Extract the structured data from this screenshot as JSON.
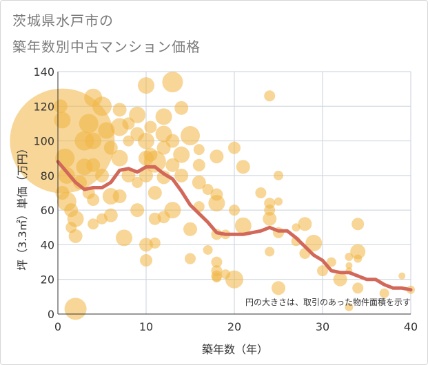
{
  "title_line1": "茨城県水戸市の",
  "title_line2": "築年数別中古マンション価格",
  "chart_data": {
    "type": "scatter",
    "xlabel": "築年数（年）",
    "ylabel": "坪（3.3㎡）単価（万円）",
    "xlim": [
      0,
      40
    ],
    "ylim": [
      0,
      140
    ],
    "x_ticks": [
      "0",
      "10",
      "20",
      "30",
      "40"
    ],
    "y_ticks": [
      "0",
      "20",
      "40",
      "60",
      "80",
      "100",
      "120",
      "140"
    ],
    "grid": true,
    "note": "円の大きさは、取引のあった物件面積を示す",
    "colors": {
      "bubble": "#f0b442",
      "trend": "#d2685a",
      "grid": "#c9d2dc"
    },
    "bubbles": [
      [
        0.5,
        100,
        76
      ],
      [
        0.3,
        120,
        10
      ],
      [
        0.5,
        112,
        12
      ],
      [
        0.8,
        90,
        14
      ],
      [
        1,
        80,
        12
      ],
      [
        1,
        65,
        14
      ],
      [
        0.5,
        70,
        10
      ],
      [
        1.5,
        60,
        10
      ],
      [
        2,
        55,
        12
      ],
      [
        2,
        45,
        10
      ],
      [
        2,
        3,
        16
      ],
      [
        1.5,
        50,
        8
      ],
      [
        2.5,
        76,
        10
      ],
      [
        3,
        100,
        14
      ],
      [
        3,
        85,
        12
      ],
      [
        3.5,
        70,
        9
      ],
      [
        3.5,
        110,
        14
      ],
      [
        4,
        125,
        13
      ],
      [
        4,
        100,
        12
      ],
      [
        4,
        86,
        10
      ],
      [
        4,
        66,
        9
      ],
      [
        4,
        52,
        8
      ],
      [
        5,
        120,
        14
      ],
      [
        5,
        80,
        10
      ],
      [
        5,
        55,
        8
      ],
      [
        5.5,
        106,
        12
      ],
      [
        6,
        96,
        10
      ],
      [
        6,
        68,
        12
      ],
      [
        6,
        57,
        10
      ],
      [
        7,
        118,
        10
      ],
      [
        7,
        108,
        13
      ],
      [
        7,
        90,
        12
      ],
      [
        7,
        68,
        10
      ],
      [
        7.5,
        44,
        12
      ],
      [
        8,
        110,
        9
      ],
      [
        8,
        80,
        10
      ],
      [
        8,
        100,
        8
      ],
      [
        9,
        115,
        12
      ],
      [
        9,
        104,
        10
      ],
      [
        9,
        60,
        10
      ],
      [
        9,
        76,
        8
      ],
      [
        10,
        132,
        12
      ],
      [
        10,
        100,
        12
      ],
      [
        10,
        90,
        11
      ],
      [
        10,
        80,
        10
      ],
      [
        10,
        40,
        10
      ],
      [
        10,
        31,
        9
      ],
      [
        10.5,
        108,
        9
      ],
      [
        10.5,
        92,
        10
      ],
      [
        11,
        88,
        16
      ],
      [
        11,
        70,
        10
      ],
      [
        11,
        55,
        9
      ],
      [
        11,
        41,
        8
      ],
      [
        12,
        114,
        12
      ],
      [
        12,
        104,
        12
      ],
      [
        12,
        96,
        10
      ],
      [
        12,
        79,
        10
      ],
      [
        12,
        56,
        9
      ],
      [
        13,
        134,
        15
      ],
      [
        13,
        100,
        10
      ],
      [
        13,
        86,
        10
      ],
      [
        13,
        60,
        12
      ],
      [
        14,
        119,
        10
      ],
      [
        14,
        92,
        12
      ],
      [
        14,
        80,
        10
      ],
      [
        15,
        103,
        14
      ],
      [
        15,
        49,
        10
      ],
      [
        15,
        32,
        8
      ],
      [
        16,
        95,
        8
      ],
      [
        16,
        86,
        9
      ],
      [
        16,
        76,
        10
      ],
      [
        16,
        62,
        8
      ],
      [
        17,
        72,
        8
      ],
      [
        17,
        37,
        7
      ],
      [
        18,
        91,
        10
      ],
      [
        18,
        69,
        9
      ],
      [
        18,
        64,
        12
      ],
      [
        18,
        46,
        8
      ],
      [
        18,
        30,
        8
      ],
      [
        18,
        25,
        8
      ],
      [
        18,
        22,
        8
      ],
      [
        18,
        21,
        7
      ],
      [
        19,
        23,
        7
      ],
      [
        19,
        46,
        7
      ],
      [
        20,
        96,
        9
      ],
      [
        20,
        60,
        8
      ],
      [
        20,
        20,
        13
      ],
      [
        21,
        85,
        10
      ],
      [
        21,
        51,
        12
      ],
      [
        23,
        70,
        8
      ],
      [
        24,
        126,
        8
      ],
      [
        24,
        64,
        8
      ],
      [
        24,
        60,
        8
      ],
      [
        24,
        55,
        10
      ],
      [
        24,
        36,
        7
      ],
      [
        25,
        80,
        7
      ],
      [
        25,
        65,
        6
      ],
      [
        25,
        47,
        8
      ],
      [
        25,
        15,
        10
      ],
      [
        27,
        50,
        6
      ],
      [
        27,
        42,
        7
      ],
      [
        28,
        52,
        10
      ],
      [
        28,
        35,
        8
      ],
      [
        29,
        41,
        12
      ],
      [
        30,
        25,
        8
      ],
      [
        31,
        30,
        7
      ],
      [
        32,
        20,
        10
      ],
      [
        33,
        33,
        6
      ],
      [
        33,
        28,
        5
      ],
      [
        33,
        25,
        5
      ],
      [
        33,
        4,
        6
      ],
      [
        34,
        52,
        9
      ],
      [
        34,
        32,
        6
      ],
      [
        34,
        36,
        11
      ],
      [
        34,
        15,
        8
      ],
      [
        37,
        12,
        7
      ],
      [
        39,
        22,
        5
      ],
      [
        40,
        14,
        6
      ]
    ],
    "trend": {
      "x": [
        0,
        1,
        2,
        3,
        4,
        5,
        6,
        7,
        8,
        9,
        10,
        11,
        12,
        13,
        14,
        15,
        16,
        17,
        18,
        19,
        20,
        21,
        22,
        23,
        24,
        25,
        26,
        27,
        28,
        29,
        30,
        31,
        32,
        33,
        34,
        35,
        36,
        37,
        38,
        39,
        40
      ],
      "y": [
        88,
        82,
        76,
        72,
        73,
        73,
        76,
        83,
        84,
        82,
        85,
        85,
        81,
        78,
        71,
        63,
        58,
        53,
        47,
        46,
        46,
        46,
        47,
        48,
        50,
        48,
        48,
        44,
        39,
        34,
        31,
        25,
        24,
        24,
        22,
        20,
        20,
        17,
        15,
        15,
        14
      ]
    }
  }
}
